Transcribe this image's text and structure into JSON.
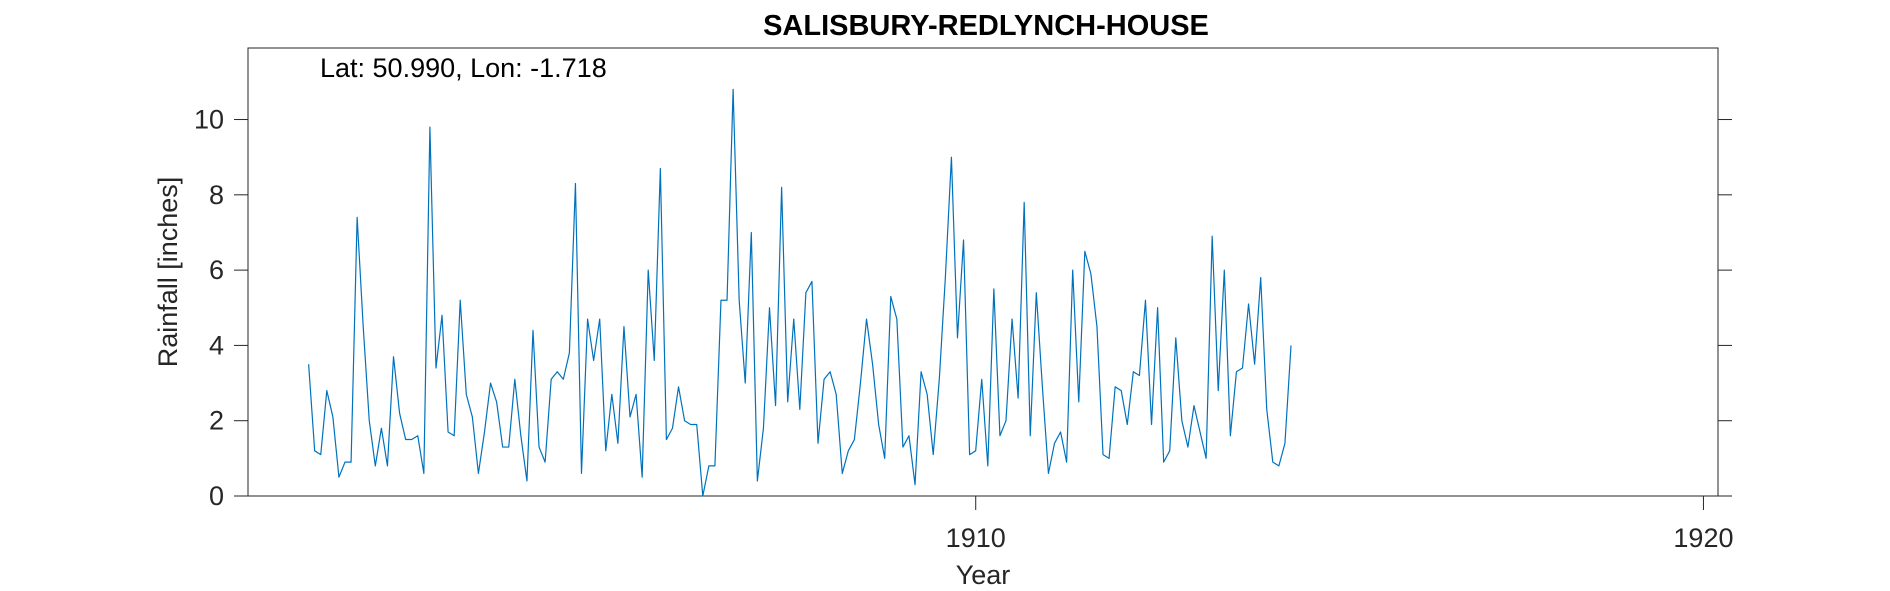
{
  "chart_data": {
    "type": "line",
    "title": "SALISBURY-REDLYNCH-HOUSE",
    "annotation": "Lat: 50.990, Lon: -1.718",
    "xlabel": "Year",
    "ylabel": "Rainfall [inches]",
    "xlim": [
      1900,
      1920.2
    ],
    "ylim": [
      0,
      11.9
    ],
    "xticks": [
      1910,
      1920
    ],
    "xtick_labels": [
      "1910",
      "1920"
    ],
    "yticks": [
      0,
      2,
      4,
      6,
      8,
      10
    ],
    "ytick_labels": [
      "0",
      "2",
      "4",
      "6",
      "8",
      "10"
    ],
    "grid": false,
    "legend": "none",
    "line_color": "#0072BD",
    "series": [
      {
        "x_start": 1900.833,
        "x_step": 0.08333,
        "values": [
          3.5,
          1.2,
          1.1,
          2.8,
          2.1,
          0.5,
          0.9,
          0.9,
          7.4,
          4.5,
          2.0,
          0.8,
          1.8,
          0.8,
          3.7,
          2.2,
          1.5,
          1.5,
          1.6,
          0.6,
          9.8,
          3.4,
          4.8,
          1.7,
          1.6,
          5.2,
          2.7,
          2.1,
          0.6,
          1.7,
          3.0,
          2.5,
          1.3,
          1.3,
          3.1,
          1.6,
          0.4,
          4.4,
          1.3,
          0.9,
          3.1,
          3.3,
          3.1,
          3.8,
          8.3,
          0.6,
          4.7,
          3.6,
          4.7,
          1.2,
          2.7,
          1.4,
          4.5,
          2.1,
          2.7,
          0.5,
          6.0,
          3.6,
          8.7,
          1.5,
          1.8,
          2.9,
          2.0,
          1.9,
          1.9,
          0.0,
          0.8,
          0.8,
          5.2,
          5.2,
          10.8,
          5.2,
          3.0,
          7.0,
          0.4,
          1.8,
          5.0,
          2.4,
          8.2,
          2.5,
          4.7,
          2.3,
          5.4,
          5.7,
          1.4,
          3.1,
          3.3,
          2.7,
          0.6,
          1.2,
          1.5,
          3.0,
          4.7,
          3.5,
          1.9,
          1.0,
          5.3,
          4.7,
          1.3,
          1.6,
          0.3,
          3.3,
          2.7,
          1.1,
          3.1,
          5.8,
          9.0,
          4.2,
          6.8,
          1.1,
          1.2,
          3.1,
          0.8,
          5.5,
          1.6,
          2.0,
          4.7,
          2.6,
          7.8,
          1.6,
          5.4,
          2.9,
          0.6,
          1.4,
          1.7,
          0.9,
          6.0,
          2.5,
          6.5,
          5.9,
          4.5,
          1.1,
          1.0,
          2.9,
          2.8,
          1.9,
          3.3,
          3.2,
          5.2,
          1.9,
          5.0,
          0.9,
          1.2,
          4.2,
          2.0,
          1.3,
          2.4,
          1.7,
          1.0,
          6.9,
          2.8,
          6.0,
          1.6,
          3.3,
          3.4,
          5.1,
          3.5,
          5.8,
          2.3,
          0.9,
          0.8,
          1.4,
          4.0
        ]
      }
    ]
  }
}
